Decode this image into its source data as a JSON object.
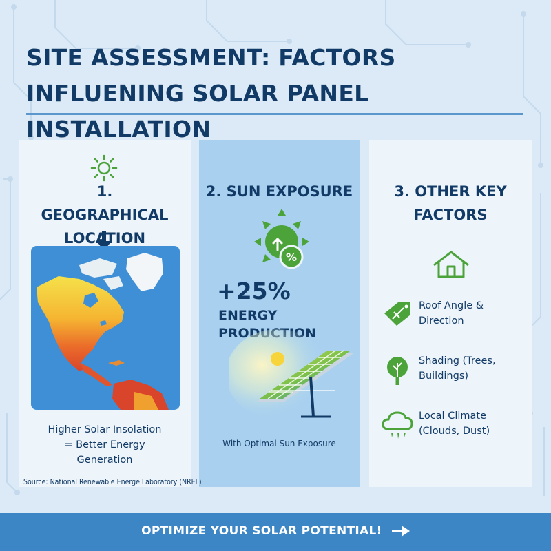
{
  "title": "SITE ASSESSMENT: FACTORS INFLUENING SOLAR PANEL  INSTALLATION",
  "colors": {
    "navy": "#123a66",
    "accent_green": "#4ba33a",
    "accent_blue": "#3d86c6",
    "background": "#dbeaf6"
  },
  "columns": [
    {
      "heading": "1. GEOGRAPHICAL LOCATION",
      "icon": "sun-icon",
      "caption": "Higher Solar Insolation = Better Energy Generation",
      "source": "Source: National Renewable Energe Laboratory (NREL)"
    },
    {
      "heading": "2. SUN EXPOSURE",
      "icon": "sun-percent-icon",
      "stat_value": "+25%",
      "stat_label": "ENERGY PRODUCTION",
      "caption": "With Optimal Sun Exposure"
    },
    {
      "heading": "3. OTHER KEY FACTORS",
      "icon": "house-icon",
      "factors": [
        {
          "label": "Roof Angle & Direction",
          "icon": "roof-tag-icon"
        },
        {
          "label": "Shading (Trees, Buildings)",
          "icon": "tree-icon"
        },
        {
          "label": "Local Climate (Clouds, Dust)",
          "icon": "rain-cloud-icon"
        }
      ]
    }
  ],
  "footer": {
    "text": "OPTIMIZE YOUR SOLAR POTENTIAL!",
    "icon": "arrow-right-icon"
  }
}
